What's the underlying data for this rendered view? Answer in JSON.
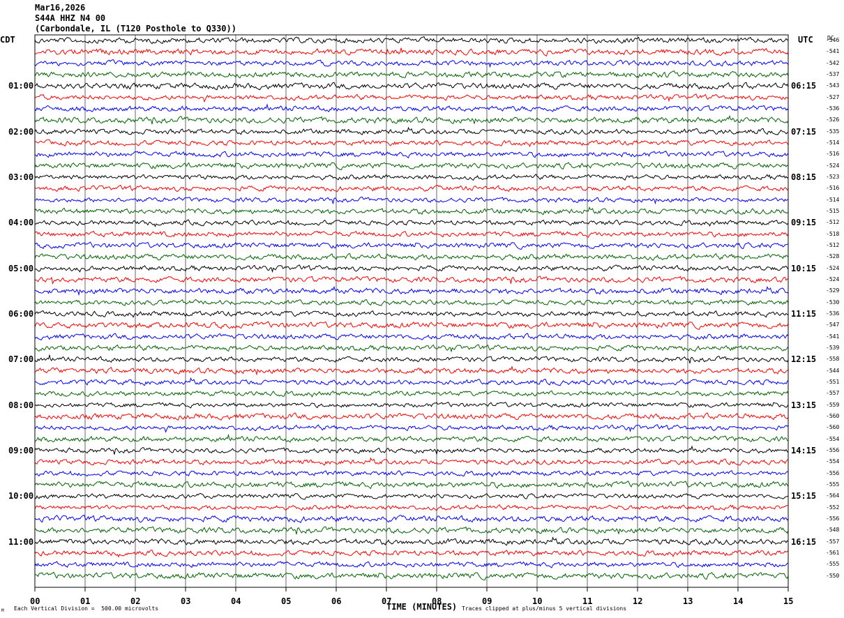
{
  "header": {
    "date": "Mar16,2026",
    "station": "S44A HHZ N4 00",
    "location": "(Carbondale, IL (T120 Posthole to Q330))"
  },
  "left_tz": "CDT",
  "right_tz": "UTC",
  "dc_header": "DC",
  "xlabel": "TIME (MINUTES)",
  "footer": {
    "scale": "Each Vertical Division =  500.00 microvolts",
    "clip": "Traces clipped at plus/minus 5 vertical divisions",
    "corner": "M"
  },
  "colors": {
    "cycle": [
      "#000000",
      "#ff0000",
      "#0000ff",
      "#006400"
    ],
    "grid": "#000000"
  },
  "chart_data": {
    "type": "line",
    "title": "S44A HHZ N4 00",
    "xlabel": "TIME (MINUTES)",
    "x_ticks": [
      "00",
      "01",
      "02",
      "03",
      "04",
      "05",
      "06",
      "07",
      "08",
      "09",
      "10",
      "11",
      "12",
      "13",
      "14",
      "15"
    ],
    "xlim": [
      0,
      15
    ],
    "row_count": 48,
    "rows_per_hour": 4,
    "left_hour_labels": [
      "01:00",
      "02:00",
      "03:00",
      "04:00",
      "05:00",
      "06:00",
      "07:00",
      "08:00",
      "09:00",
      "10:00",
      "11:00"
    ],
    "right_hour_labels": [
      "06:15",
      "07:15",
      "08:15",
      "09:15",
      "10:15",
      "11:15",
      "12:15",
      "13:15",
      "14:15",
      "15:15",
      "16:15"
    ],
    "dc_offsets": [
      "-546",
      "-541",
      "-542",
      "-537",
      "-543",
      "-527",
      "-536",
      "-526",
      "-535",
      "-514",
      "-516",
      "-524",
      "-523",
      "-516",
      "-514",
      "-515",
      "-512",
      "-518",
      "-512",
      "-528",
      "-524",
      "-524",
      "-529",
      "-530",
      "-536",
      "-547",
      "-541",
      "-539",
      "-558",
      "-544",
      "-551",
      "-557",
      "-559",
      "-560",
      "-560",
      "-554",
      "-556",
      "-554",
      "-556",
      "-555",
      "-564",
      "-552",
      "-556",
      "-548",
      "-557",
      "-561",
      "-555",
      "-550"
    ]
  }
}
